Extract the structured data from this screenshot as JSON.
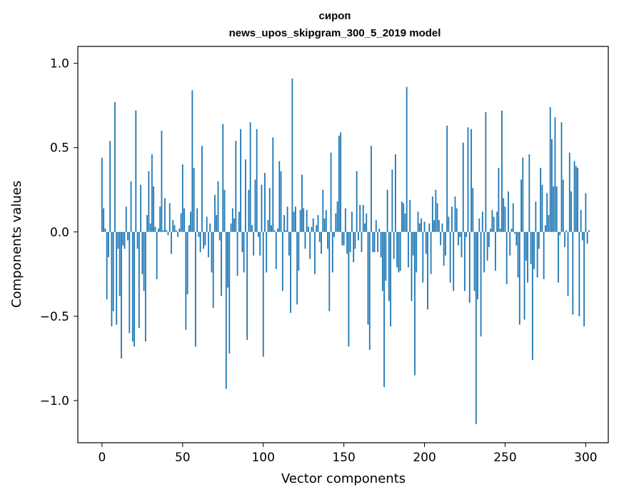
{
  "chart_data": {
    "type": "bar",
    "title": "сироп",
    "subtitle": "news_upos_skipgram_300_5_2019 model",
    "xlabel": "Vector components",
    "ylabel": "Components values",
    "xlim": [
      -15,
      314
    ],
    "ylim": [
      -1.25,
      1.1
    ],
    "xticks": [
      0,
      50,
      100,
      150,
      200,
      250,
      300
    ],
    "xtick_labels": [
      "0",
      "50",
      "100",
      "150",
      "200",
      "250",
      "300"
    ],
    "yticks": [
      -1.0,
      -0.5,
      0.0,
      0.5,
      1.0
    ],
    "ytick_labels": [
      "−1.0",
      "−0.5",
      "0.0",
      "0.5",
      "1.0"
    ],
    "bar_color": "#1f77b4",
    "grid": false,
    "values": [
      0.44,
      0.14,
      0.02,
      -0.4,
      -0.15,
      0.54,
      -0.56,
      -0.47,
      0.77,
      -0.55,
      -0.1,
      -0.38,
      -0.75,
      -0.08,
      -0.1,
      0.15,
      -0.05,
      -0.6,
      0.3,
      -0.65,
      -0.68,
      0.72,
      -0.1,
      -0.57,
      0.28,
      -0.25,
      -0.35,
      -0.65,
      0.1,
      0.36,
      0.05,
      0.46,
      0.27,
      0.03,
      -0.28,
      0.02,
      0.15,
      0.6,
      0.01,
      0.2,
      0.01,
      -0.02,
      0.17,
      -0.13,
      0.07,
      0.04,
      0.01,
      -0.03,
      0.02,
      0.11,
      0.4,
      0.14,
      -0.58,
      -0.37,
      0.04,
      0.12,
      0.84,
      0.38,
      -0.68,
      0.14,
      -0.03,
      -0.12,
      0.51,
      -0.1,
      -0.08,
      0.09,
      -0.15,
      0.05,
      -0.24,
      -0.45,
      0.22,
      0.1,
      0.3,
      -0.05,
      -0.38,
      0.64,
      0.25,
      -0.93,
      -0.33,
      -0.72,
      0.05,
      0.14,
      0.08,
      0.54,
      -0.26,
      0.12,
      0.61,
      -0.12,
      -0.24,
      0.43,
      -0.64,
      0.25,
      0.65,
      0.04,
      -0.14,
      0.31,
      0.61,
      -0.03,
      -0.14,
      0.28,
      -0.74,
      0.35,
      -0.24,
      0.07,
      0.26,
      0.04,
      0.56,
      0.01,
      -0.22,
      0.02,
      0.42,
      0.36,
      -0.35,
      0.1,
      0.01,
      0.15,
      -0.14,
      -0.48,
      0.91,
      0.12,
      0.15,
      -0.43,
      -0.23,
      0.13,
      0.34,
      0.14,
      -0.1,
      0.13,
      0.03,
      -0.16,
      0.03,
      0.08,
      -0.25,
      0.04,
      0.1,
      -0.06,
      -0.13,
      0.25,
      0.08,
      0.13,
      -0.1,
      -0.47,
      0.47,
      -0.24,
      -0.03,
      0.11,
      0.18,
      0.57,
      0.59,
      -0.08,
      -0.08,
      0.14,
      -0.13,
      -0.68,
      -0.12,
      0.12,
      -0.18,
      -0.1,
      0.36,
      -0.05,
      0.16,
      -0.12,
      0.16,
      0.05,
      0.11,
      -0.55,
      -0.7,
      0.51,
      -0.12,
      -0.12,
      0.07,
      -0.12,
      0.02,
      -0.15,
      -0.35,
      -0.92,
      -0.29,
      0.25,
      -0.41,
      -0.56,
      0.37,
      -0.16,
      0.46,
      -0.21,
      -0.24,
      -0.23,
      0.18,
      0.17,
      0.11,
      0.86,
      -0.21,
      0.19,
      -0.41,
      -0.14,
      -0.85,
      -0.24,
      0.12,
      0.05,
      0.08,
      -0.3,
      0.06,
      -0.13,
      -0.46,
      0.05,
      -0.25,
      0.21,
      0.07,
      0.25,
      0.17,
      0.07,
      -0.08,
      0.05,
      -0.2,
      -0.14,
      0.63,
      0.09,
      -0.3,
      0.15,
      -0.35,
      0.21,
      0.14,
      -0.08,
      -0.03,
      -0.15,
      0.53,
      -0.35,
      -0.03,
      0.62,
      -0.42,
      0.61,
      0.26,
      -0.35,
      -1.14,
      -0.4,
      0.08,
      -0.62,
      0.12,
      -0.24,
      0.71,
      -0.17,
      -0.09,
      0.02,
      0.13,
      0.09,
      -0.23,
      0.12,
      0.38,
      0.02,
      0.72,
      0.2,
      0.15,
      -0.31,
      0.24,
      -0.14,
      0.02,
      0.17,
      -0.01,
      -0.08,
      -0.27,
      -0.55,
      0.31,
      0.44,
      -0.52,
      -0.17,
      -0.3,
      0.46,
      -0.19,
      -0.76,
      -0.22,
      0.18,
      -0.27,
      -0.1,
      0.38,
      0.28,
      -0.28,
      0.04,
      0.23,
      0.1,
      0.74,
      0.55,
      0.27,
      0.68,
      0.27,
      -0.3,
      -0.02,
      0.65,
      0.31,
      -0.09,
      0.01,
      -0.38,
      0.47,
      0.24,
      -0.49,
      0.42,
      0.39,
      0.38,
      -0.5,
      0.13,
      -0.05,
      -0.56,
      0.23,
      -0.07,
      0.01
    ]
  }
}
